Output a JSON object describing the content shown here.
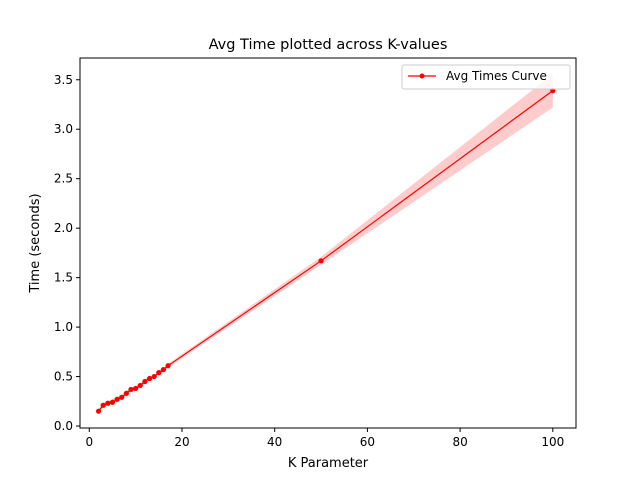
{
  "chart_data": {
    "type": "line",
    "title": "Avg Time plotted across K-values",
    "xlabel": "K Parameter",
    "ylabel": "Time (seconds)",
    "xlim": [
      -2,
      105
    ],
    "ylim": [
      -0.02,
      3.72
    ],
    "x_ticks": [
      0,
      20,
      40,
      60,
      80,
      100
    ],
    "y_ticks": [
      0.0,
      0.5,
      1.0,
      1.5,
      2.0,
      2.5,
      3.0,
      3.5
    ],
    "x_tick_labels": [
      "0",
      "20",
      "40",
      "60",
      "80",
      "100"
    ],
    "y_tick_labels": [
      "0.0",
      "0.5",
      "1.0",
      "1.5",
      "2.0",
      "2.5",
      "3.0",
      "3.5"
    ],
    "grid": false,
    "legend_position": "upper right",
    "series": [
      {
        "name": "Avg Times Curve",
        "color": "#ff0000",
        "marker": "circle",
        "x": [
          2,
          3,
          4,
          5,
          6,
          7,
          8,
          9,
          10,
          11,
          12,
          13,
          14,
          15,
          16,
          17,
          50,
          100
        ],
        "y": [
          0.15,
          0.21,
          0.23,
          0.24,
          0.27,
          0.29,
          0.33,
          0.37,
          0.38,
          0.41,
          0.45,
          0.48,
          0.5,
          0.54,
          0.57,
          0.61,
          1.67,
          3.39
        ],
        "band_lower": [
          0.13,
          0.19,
          0.21,
          0.22,
          0.25,
          0.27,
          0.31,
          0.35,
          0.36,
          0.39,
          0.43,
          0.46,
          0.48,
          0.52,
          0.55,
          0.59,
          1.63,
          3.22
        ],
        "band_upper": [
          0.17,
          0.23,
          0.25,
          0.27,
          0.3,
          0.32,
          0.35,
          0.39,
          0.4,
          0.43,
          0.47,
          0.5,
          0.52,
          0.56,
          0.59,
          0.63,
          1.71,
          3.56
        ],
        "band_color": "#ff0000"
      }
    ]
  }
}
